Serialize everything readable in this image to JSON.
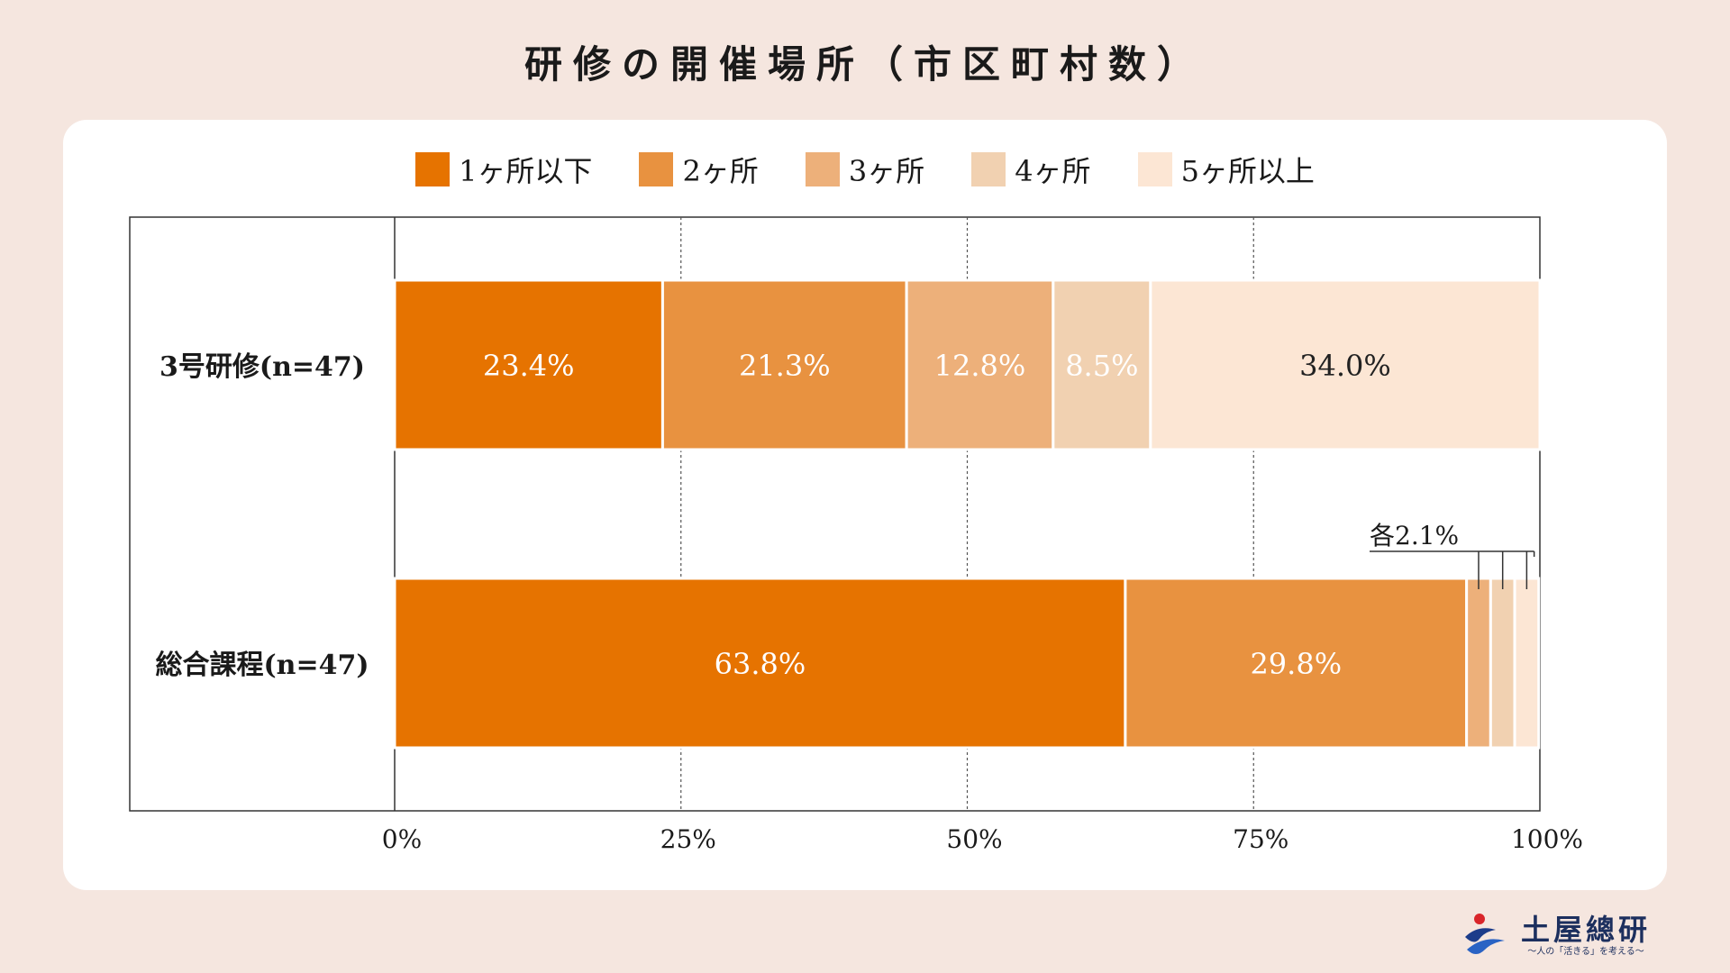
{
  "title": "研修の開催場所（市区町村数）",
  "logo": {
    "name": "土屋總研",
    "tagline": "〜人の「活きる」を考える〜"
  },
  "chart_data": {
    "type": "bar",
    "orientation": "horizontal",
    "stacked": true,
    "categories": [
      "3号研修(n=47)",
      "総合課程(n=47)"
    ],
    "series": [
      {
        "name": "1ヶ所以下",
        "color": "#e67300",
        "values": [
          23.4,
          63.8
        ]
      },
      {
        "name": "2ヶ所",
        "color": "#e89240",
        "values": [
          21.3,
          29.8
        ]
      },
      {
        "name": "3ヶ所",
        "color": "#edb07a",
        "values": [
          12.8,
          2.1
        ]
      },
      {
        "name": "4ヶ所",
        "color": "#f1d1b1",
        "values": [
          8.5,
          2.1
        ]
      },
      {
        "name": "5ヶ所以上",
        "color": "#fce6d4",
        "values": [
          34.0,
          2.1
        ]
      }
    ],
    "data_labels": [
      [
        "23.4%",
        "21.3%",
        "12.8%",
        "8.5%",
        "34.0%"
      ],
      [
        "63.8%",
        "29.8%",
        "",
        "",
        ""
      ]
    ],
    "annotation": "各2.1%",
    "xticks": [
      "0%",
      "25%",
      "50%",
      "75%",
      "100%"
    ],
    "xlim": [
      0,
      100
    ],
    "grid": "vertical dashed",
    "legend": "top-center"
  }
}
